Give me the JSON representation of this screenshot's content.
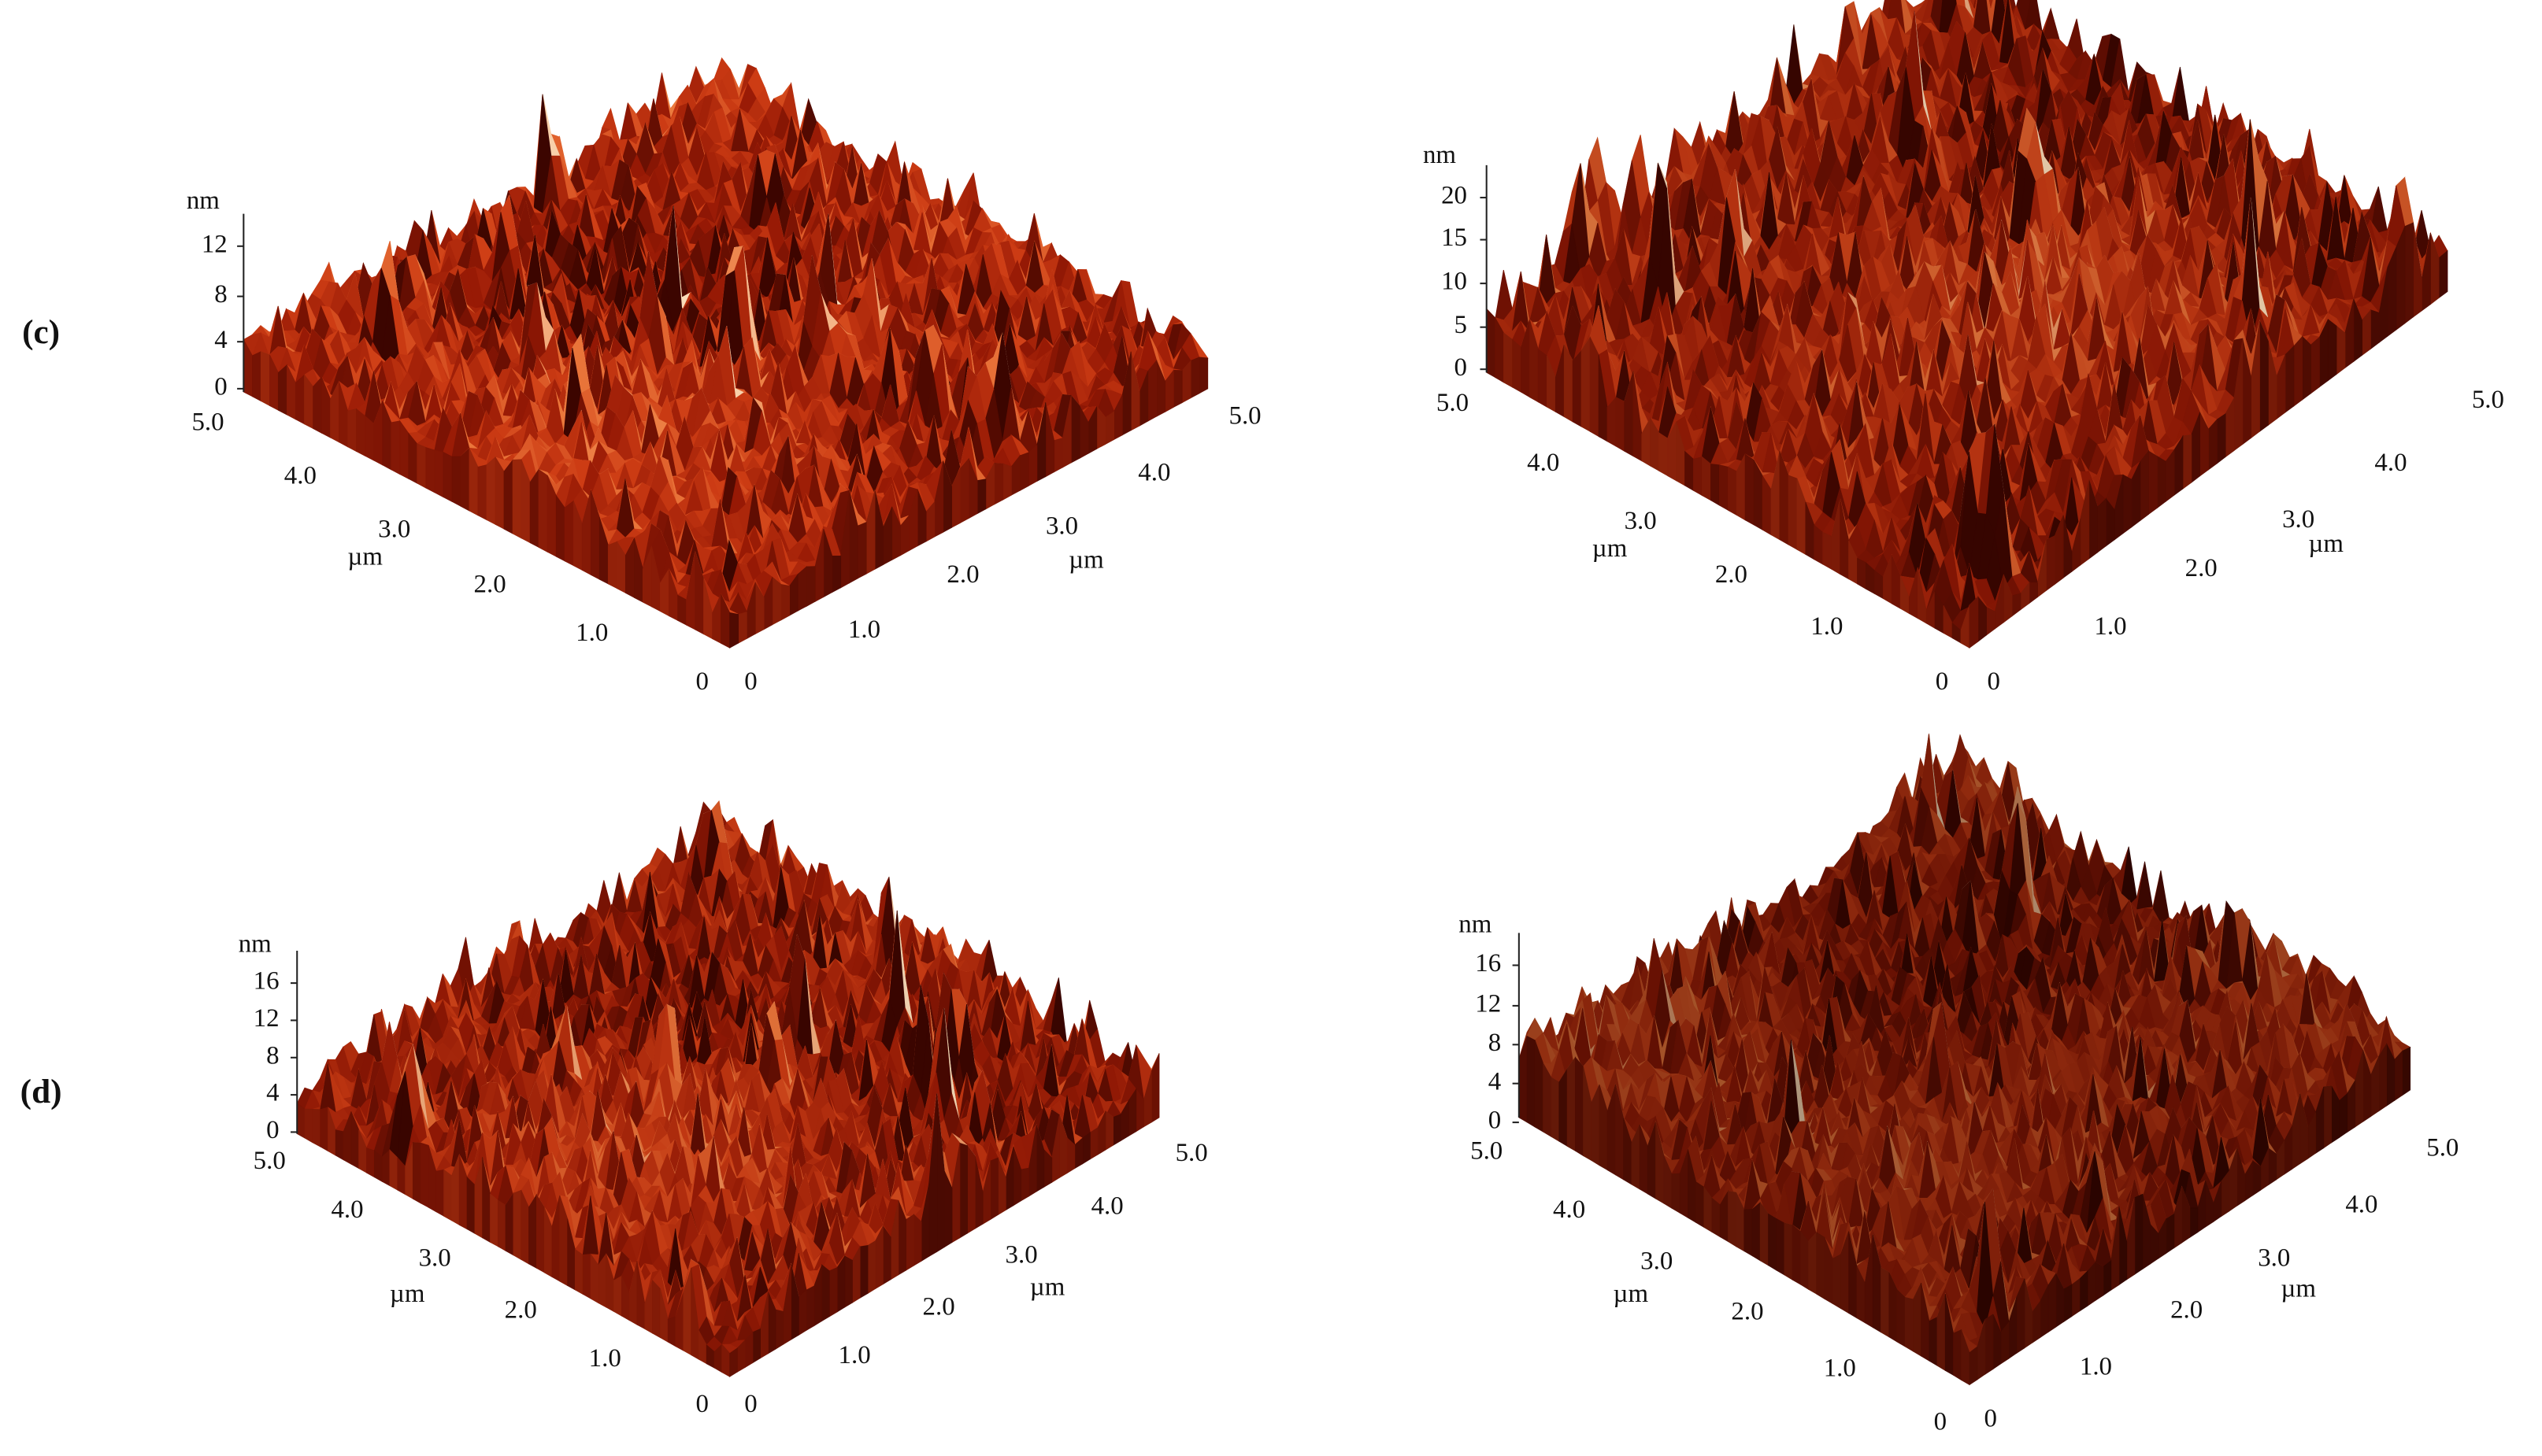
{
  "figure": {
    "panels": [
      {
        "row_label": "(c)",
        "z_unit": "nm",
        "z_ticks": [
          "12",
          "8",
          "4",
          "0"
        ],
        "left_ticks": [
          "5.0",
          "4.0",
          "3.0",
          "2.0",
          "1.0",
          "0"
        ],
        "left_unit": "µm",
        "right_ticks": [
          "0",
          "1.0",
          "2.0",
          "3.0",
          "4.0",
          "5.0"
        ],
        "right_unit": "µm"
      },
      {
        "z_unit": "nm",
        "z_ticks": [
          "20",
          "15",
          "10",
          "5",
          "0"
        ],
        "left_ticks": [
          "5.0",
          "4.0",
          "3.0",
          "2.0",
          "1.0",
          "0"
        ],
        "left_unit": "µm",
        "right_ticks": [
          "0",
          "1.0",
          "2.0",
          "3.0",
          "4.0",
          "5.0"
        ],
        "right_unit": "µm"
      },
      {
        "row_label": "(d)",
        "z_unit": "nm",
        "z_ticks": [
          "16",
          "12",
          "8",
          "4",
          "0"
        ],
        "left_ticks": [
          "5.0",
          "4.0",
          "3.0",
          "2.0",
          "1.0",
          "0"
        ],
        "left_unit": "µm",
        "right_ticks": [
          "0",
          "1.0",
          "2.0",
          "3.0",
          "4.0",
          "5.0"
        ],
        "right_unit": "µm"
      },
      {
        "z_unit": "nm",
        "z_ticks": [
          "16",
          "12",
          "8",
          "4",
          "0"
        ],
        "left_ticks": [
          "5.0",
          "4.0",
          "3.0",
          "2.0",
          "1.0",
          "0"
        ],
        "left_unit": "µm",
        "right_ticks": [
          "0",
          "1.0",
          "2.0",
          "3.0",
          "4.0",
          "5.0"
        ],
        "right_unit": "µm"
      }
    ]
  }
}
